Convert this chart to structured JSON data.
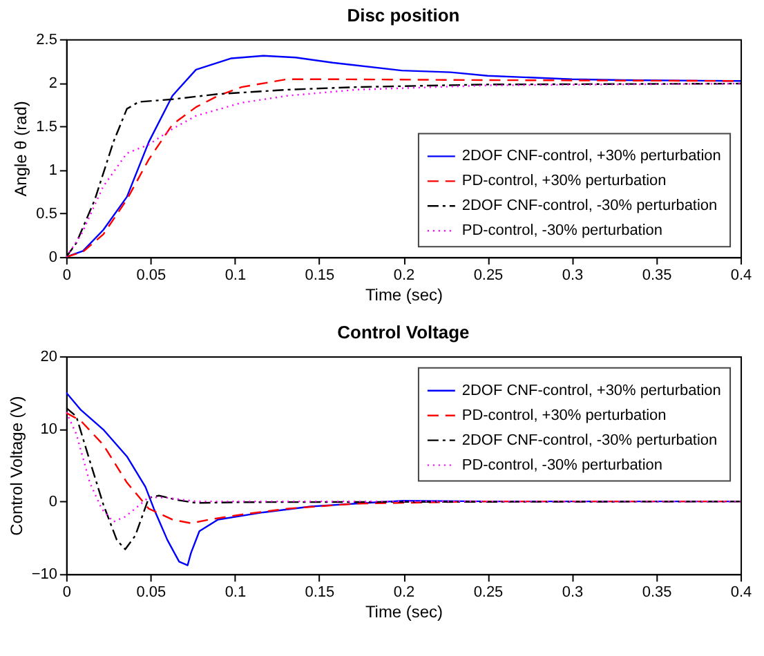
{
  "chart_data": [
    {
      "type": "line",
      "title": "Disc position",
      "xlabel": "Time (sec)",
      "ylabel": "Angle θ (rad)",
      "xlim": [
        0,
        0.4
      ],
      "xticks": [
        0,
        0.05,
        0.1,
        0.15,
        0.2,
        0.25,
        0.3,
        0.35,
        0.4
      ],
      "ylim": [
        0,
        2.5
      ],
      "yticks": [
        0,
        0.5,
        1,
        1.5,
        2,
        2.5
      ],
      "grid": false,
      "legend": "bottom right",
      "series": [
        {
          "name": "2DOF CNF-control, +30% perturbation",
          "color": "#0000ff",
          "line_style": "solid",
          "x": [
            0,
            0.01,
            0.022,
            0.036,
            0.049,
            0.063,
            0.077,
            0.098,
            0.117,
            0.136,
            0.158,
            0.199,
            0.228,
            0.25,
            0.3,
            0.33,
            0.4
          ],
          "values": [
            0,
            0.07,
            0.31,
            0.69,
            1.32,
            1.85,
            2.15,
            2.28,
            2.31,
            2.29,
            2.23,
            2.14,
            2.12,
            2.08,
            2.04,
            2.03,
            2.02
          ]
        },
        {
          "name": "PD-control, +30% perturbation",
          "color": "#ff0000",
          "line_style": "dashed",
          "x": [
            0,
            0.01,
            0.022,
            0.036,
            0.049,
            0.063,
            0.077,
            0.09,
            0.104,
            0.131,
            0.158,
            0.25,
            0.4
          ],
          "values": [
            0,
            0.06,
            0.26,
            0.66,
            1.12,
            1.52,
            1.72,
            1.85,
            1.95,
            2.04,
            2.04,
            2.03,
            2.02
          ]
        },
        {
          "name": "2DOF CNF-control, -30% perturbation",
          "color": "#000000",
          "line_style": "dashdot",
          "x": [
            0,
            0.006,
            0.017,
            0.028,
            0.036,
            0.043,
            0.063,
            0.09,
            0.131,
            0.172,
            0.25,
            0.4
          ],
          "values": [
            0,
            0.16,
            0.66,
            1.32,
            1.7,
            1.78,
            1.81,
            1.87,
            1.92,
            1.95,
            1.98,
            1.99
          ]
        },
        {
          "name": "PD-control, -30% perturbation",
          "color": "#ff00ff",
          "line_style": "dotted",
          "x": [
            0,
            0.009,
            0.022,
            0.036,
            0.049,
            0.063,
            0.077,
            0.104,
            0.131,
            0.172,
            0.25,
            0.4
          ],
          "values": [
            0,
            0.26,
            0.81,
            1.19,
            1.29,
            1.47,
            1.62,
            1.77,
            1.85,
            1.92,
            1.97,
            1.99
          ]
        }
      ]
    },
    {
      "type": "line",
      "title": "Control Voltage",
      "xlabel": "Time (sec)",
      "ylabel": "Control Voltage (V)",
      "xlim": [
        0,
        0.4
      ],
      "xticks": [
        0,
        0.05,
        0.1,
        0.15,
        0.2,
        0.25,
        0.3,
        0.35,
        0.4
      ],
      "ylim": [
        -10,
        20
      ],
      "yticks": [
        -10,
        0,
        10,
        20
      ],
      "grid": false,
      "legend": "top right",
      "series": [
        {
          "name": "2DOF CNF-control, +30% perturbation",
          "color": "#0000ff",
          "line_style": "solid",
          "x": [
            0,
            0.0087,
            0.022,
            0.036,
            0.047,
            0.052,
            0.06,
            0.067,
            0.072,
            0.074,
            0.079,
            0.09,
            0.117,
            0.145,
            0.185,
            0.2,
            0.25,
            0.4
          ],
          "values": [
            15,
            12.6,
            9.9,
            6.2,
            2,
            -1,
            -5.3,
            -8.3,
            -8.8,
            -7.1,
            -4.1,
            -2.5,
            -1.5,
            -0.7,
            -0.1,
            0.1,
            0,
            0
          ]
        },
        {
          "name": "PD-control, +30% perturbation",
          "color": "#ff0000",
          "line_style": "dashed",
          "x": [
            0,
            0.0087,
            0.022,
            0.036,
            0.049,
            0.063,
            0.074,
            0.085,
            0.104,
            0.131,
            0.172,
            0.25,
            0.4
          ],
          "values": [
            12.2,
            11.1,
            7.8,
            2.6,
            -1,
            -2.5,
            -3,
            -2.5,
            -1.8,
            -1,
            -0.3,
            0,
            0
          ]
        },
        {
          "name": "2DOF CNF-control, -30% perturbation",
          "color": "#000000",
          "line_style": "dashdot",
          "x": [
            0,
            0.006,
            0.014,
            0.022,
            0.03,
            0.035,
            0.041,
            0.049,
            0.055,
            0.066,
            0.077,
            0.104,
            0.4
          ],
          "values": [
            12.9,
            11.7,
            5.6,
            -0.4,
            -5.3,
            -6.6,
            -4.7,
            0.5,
            0.8,
            0.2,
            -0.2,
            -0.1,
            0
          ]
        },
        {
          "name": "PD-control, -30% perturbation",
          "color": "#ff00ff",
          "line_style": "dotted",
          "x": [
            0,
            0.006,
            0.014,
            0.021,
            0.028,
            0.035,
            0.044,
            0.049,
            0.06,
            0.077,
            0.4
          ],
          "values": [
            12.3,
            9.3,
            2.6,
            -1,
            -2.8,
            -2.1,
            -0.4,
            0.6,
            0.5,
            0,
            0
          ]
        }
      ]
    }
  ]
}
